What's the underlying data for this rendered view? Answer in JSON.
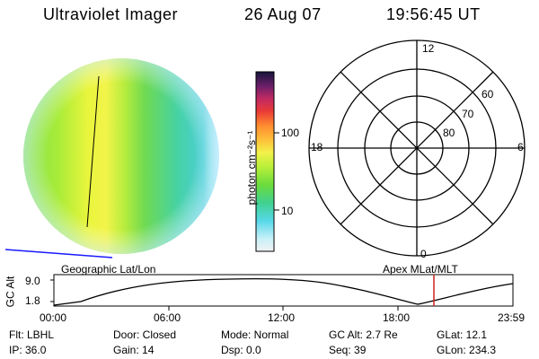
{
  "header": {
    "instrument": "Ultraviolet Imager",
    "date": "26 Aug 07",
    "time": "19:56:45 UT"
  },
  "colorbar": {
    "unit_label": "photon cm⁻²s⁻¹",
    "ticks": [
      "100",
      "10"
    ]
  },
  "polar_plot": {
    "hour_labels": [
      "12",
      "18",
      "6",
      "0"
    ],
    "lat_labels": [
      "60",
      "70",
      "80"
    ]
  },
  "timeline": {
    "left_title": "Geographic Lat/Lon",
    "right_title": "Apex MLat/MLT",
    "ylabel": "GC Alt",
    "y_ticks": [
      "9.0",
      "1.8"
    ],
    "x_ticks": [
      "00:00",
      "06:00",
      "12:00",
      "18:00",
      "23:59"
    ],
    "marker_time": "19:56:45"
  },
  "status": {
    "row1": {
      "flt": "Flt: LBHL",
      "door": "Door: Closed",
      "mode": "Mode: Normal",
      "gc_alt": "GC Alt: 2.7 Re",
      "glat": "GLat:  12.1"
    },
    "row2": {
      "ip": "IP: 36.0",
      "gain": "Gain: 14",
      "dsp": "Dsp:      0.0",
      "seq": "Seq: 39",
      "glon": "GLon:  234.3"
    }
  },
  "colors": {
    "curve": "#000000",
    "marker": "#cc2222",
    "horizon_line": "#1a1aff"
  }
}
